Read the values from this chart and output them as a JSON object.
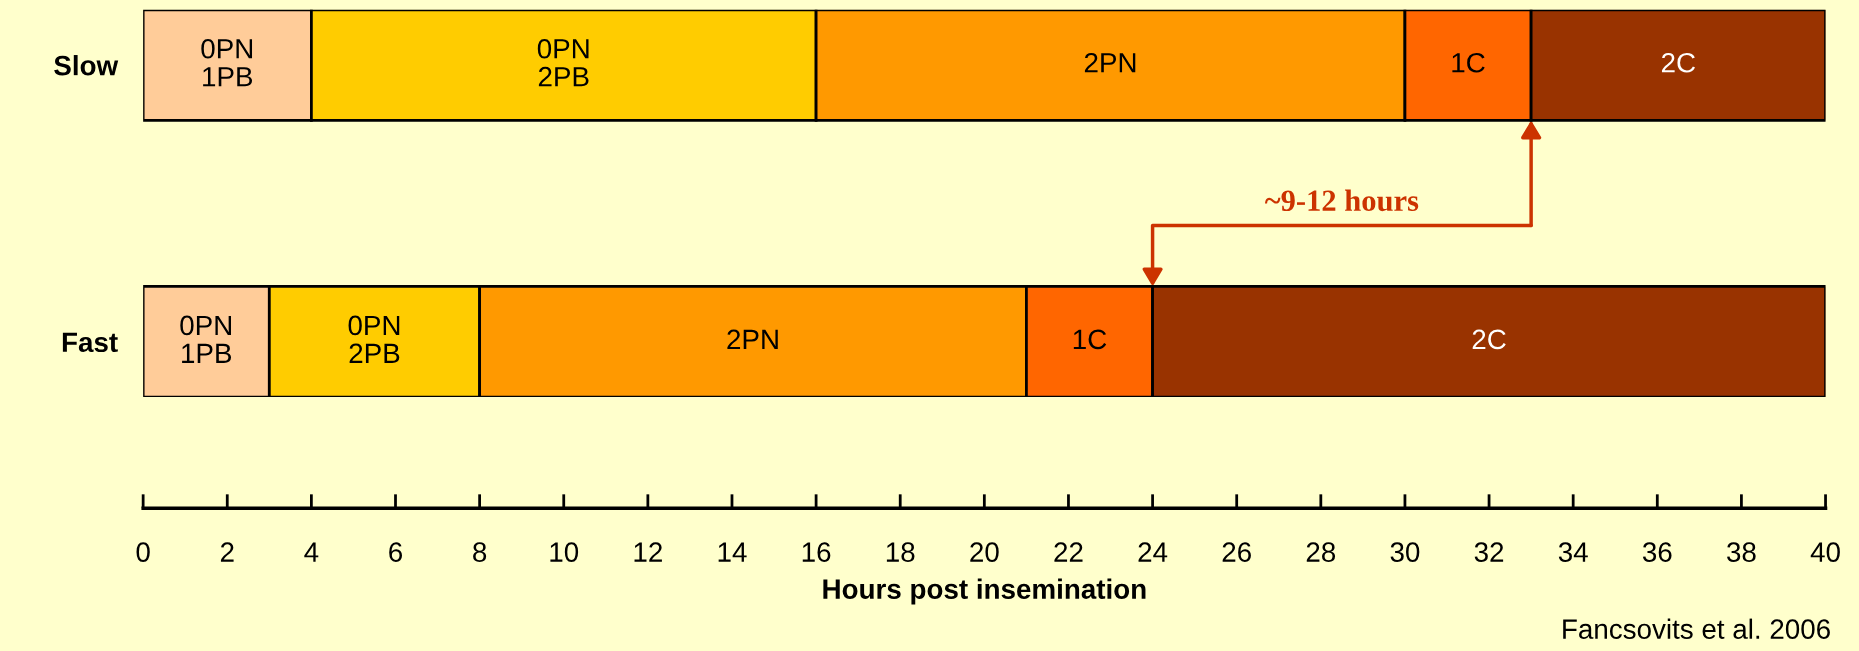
{
  "chart_data": {
    "type": "bar",
    "orientation": "horizontal",
    "stacked": true,
    "categories": [
      "Slow",
      "Fast"
    ],
    "xlabel": "Hours post insemination",
    "xlim": [
      0,
      40
    ],
    "xticks": [
      0,
      2,
      4,
      6,
      8,
      10,
      12,
      14,
      16,
      18,
      20,
      22,
      24,
      26,
      28,
      30,
      32,
      34,
      36,
      38,
      40
    ],
    "grid": false,
    "legend": false,
    "series": [
      {
        "name": "0PN\n1PB",
        "color": "#ffcc99",
        "values": [
          4,
          3
        ]
      },
      {
        "name": "0PN\n2PB",
        "color": "#ffcc00",
        "values": [
          12,
          5
        ]
      },
      {
        "name": "2PN",
        "color": "#ff9900",
        "values": [
          14,
          13
        ]
      },
      {
        "name": "1C",
        "color": "#ff6600",
        "values": [
          3,
          3
        ]
      },
      {
        "name": "2C",
        "color": "#993300",
        "values": [
          7,
          16
        ]
      }
    ],
    "annotations": [
      "~9-12 hours",
      "Fancsovits et al. 2006"
    ]
  }
}
